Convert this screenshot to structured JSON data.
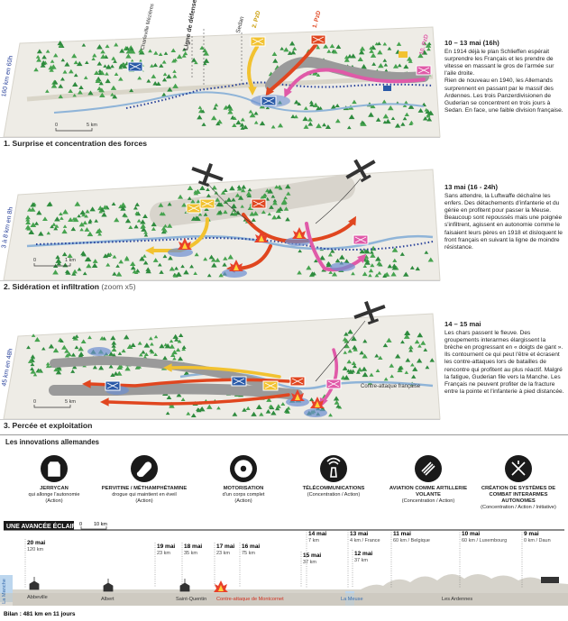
{
  "panels": [
    {
      "heading": "10 – 13 mai (16h)",
      "paragraphs": [
        "En 1914 déjà le plan Schlieffen espérait surprendre les Français et les prendre de vitesse en massant le gros de l'armée sur l'aile droite.",
        "Rien de nouveau en 1940, les Allemands surprennent en passant par le massif des Ardennes. Les trois Panzerdivisionen de Guderian se concentrent en trois jours à Sedan. En face, une faible division française."
      ],
      "caption": "1. Surprise et concentration des forces",
      "labels": [
        "160 km en 60h",
        "Charleville Mézières",
        "Ligne de défense",
        "2. PzD",
        "Sedan",
        "1. PzD",
        "10. PzD",
        "0",
        "5 km"
      ]
    },
    {
      "heading": "13 mai (16 - 24h)",
      "paragraphs": [
        "Sans attendre, la Luftwaffe déchaîne les enfers. Des détachements d'infanterie et du génie en profitent pour passer la Meuse.",
        "Beaucoup sont repoussés mais une poignée s'infiltrent, agissent en autonomie comme le faisaient leurs pères en 1918 et disloquent le front français en suivant la ligne de moindre résistance."
      ],
      "caption": "2. Sidération et infiltration",
      "caption_note": "(zoom x5)",
      "labels": [
        "3 à 8 km en 8h",
        "0",
        "1 km"
      ]
    },
    {
      "heading": "14 – 15 mai",
      "paragraphs": [
        "Les chars passent le fleuve. Des groupements interarmes élargissent la brèche en progressant en « doigts de gant ». Ils contournent ce qui peut l'être et écrasent les contre-attaques lors de batailles de rencontre qui profitent au plus réactif. Malgré la fatigue, Guderian file vers la Manche. Les Français ne peuvent profiter de la fracture entre la pointe et l'infanterie à pied distancée."
      ],
      "caption": "3. Percée et exploitation",
      "labels": [
        "45 km en 48h",
        "Contre-attaque française",
        "0",
        "5 km"
      ]
    }
  ],
  "innovations": {
    "title": "Les innovations allemandes",
    "items": [
      {
        "name": "JERRYCAN",
        "desc": "qui allonge l'autonomie",
        "tag": "(Action)"
      },
      {
        "name": "PERVITINE / MÉTHAMPHÉTAMINE",
        "desc": "drogue qui maintient en éveil",
        "tag": "(Action)"
      },
      {
        "name": "MOTORISATION",
        "desc": "d'un corps complet",
        "tag": "(Action)"
      },
      {
        "name": "TÉLÉCOMMUNICATIONS",
        "desc": "",
        "tag": "(Concentration / Action)"
      },
      {
        "name": "AVIATION COMME ARTILLERIE VOLANTE",
        "desc": "",
        "tag": "(Concentration / Action)"
      },
      {
        "name": "CRÉATION DE SYSTÈMES DE COMBAT INTERARMES AUTONOMES",
        "desc": "",
        "tag": "(Concentration / Action / Initiative)"
      }
    ]
  },
  "timeline": {
    "title": "UNE AVANCÉE ÉCLAIR",
    "scale": [
      "0",
      "10 km"
    ],
    "stops": [
      {
        "date": "20 mai",
        "km": "120 km"
      },
      {
        "date": "19 mai",
        "km": "23 km"
      },
      {
        "date": "18 mai",
        "km": "35 km"
      },
      {
        "date": "17 mai",
        "km": "23 km"
      },
      {
        "date": "16 mai",
        "km": "75 km"
      },
      {
        "date": "15 mai",
        "km": "37 km"
      },
      {
        "date": "14 mai",
        "km": "7 km"
      },
      {
        "date": "12 mai",
        "km": "37 km"
      },
      {
        "date": "13 mai",
        "km": "4 km / France"
      },
      {
        "date": "11 mai",
        "km": "60 km / Belgique"
      },
      {
        "date": "10 mai",
        "km": "60 km / Luxembourg"
      },
      {
        "date": "9 mai",
        "km": "0 km / Daun"
      }
    ],
    "places": [
      "La Manche",
      "Abbeville",
      "Albert",
      "Saint-Quentin",
      "Contre-attaque de Montcornet",
      "La Meuse",
      "Les Ardennes"
    ],
    "bilan": "Bilan : 481 km en 11 jours"
  }
}
